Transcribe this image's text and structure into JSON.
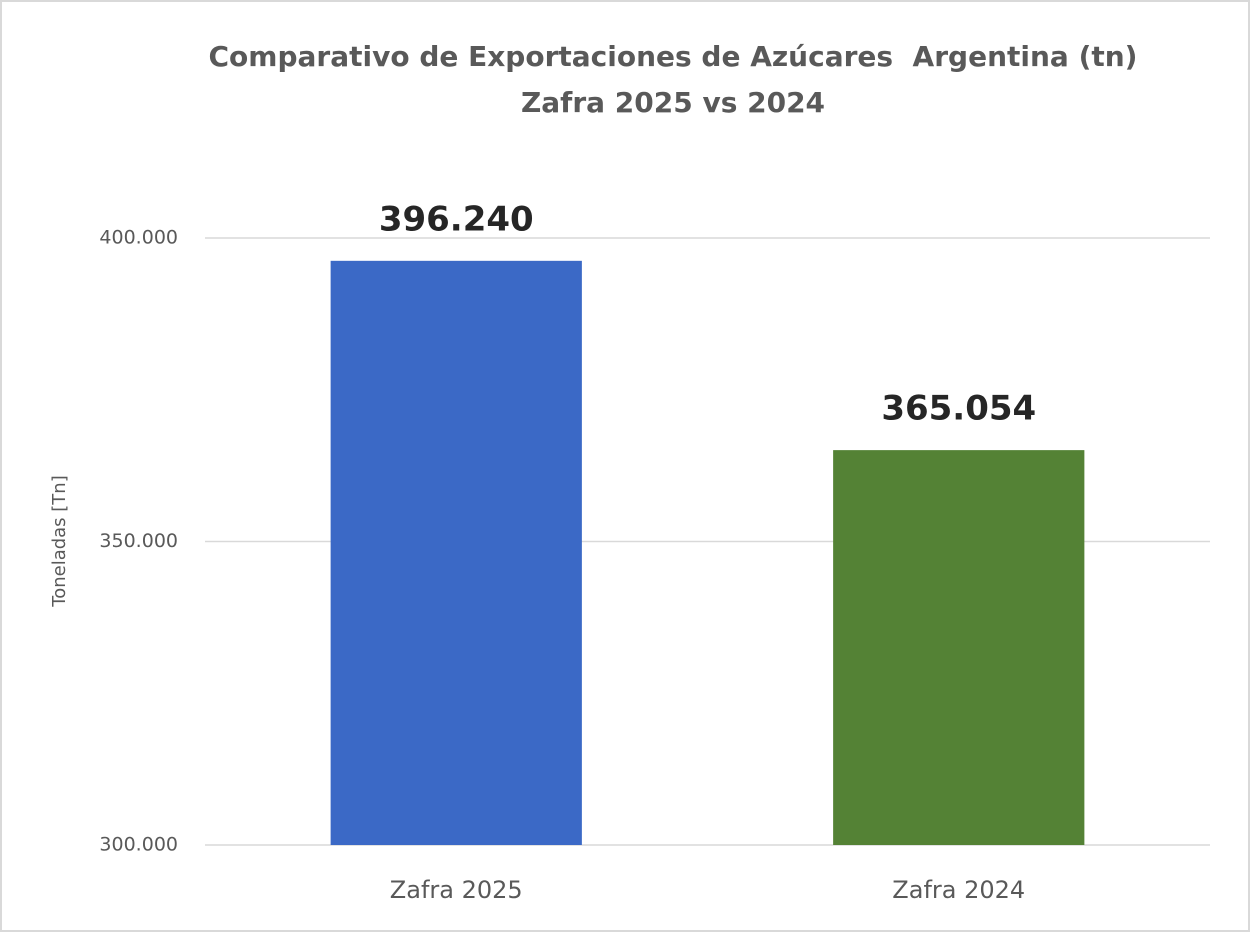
{
  "chart_data": {
    "type": "bar",
    "title": "Comparativo de Exportaciones de Azúcares  Argentina (tn)",
    "subtitle": "Zafra 2025 vs 2024",
    "y_label": "Toneladas [Tn]",
    "categories": [
      "Zafra 2025",
      "Zafra 2024"
    ],
    "values": [
      396240,
      365054
    ],
    "value_labels": [
      "396.240",
      "365.054"
    ],
    "colors": [
      "#3b69c6",
      "#548235"
    ],
    "ylim": [
      300000,
      400000
    ],
    "yticks": [
      {
        "value": 300000,
        "label": "300.000"
      },
      {
        "value": 350000,
        "label": "350.000"
      },
      {
        "value": 400000,
        "label": "400.000"
      }
    ],
    "grid": true
  }
}
